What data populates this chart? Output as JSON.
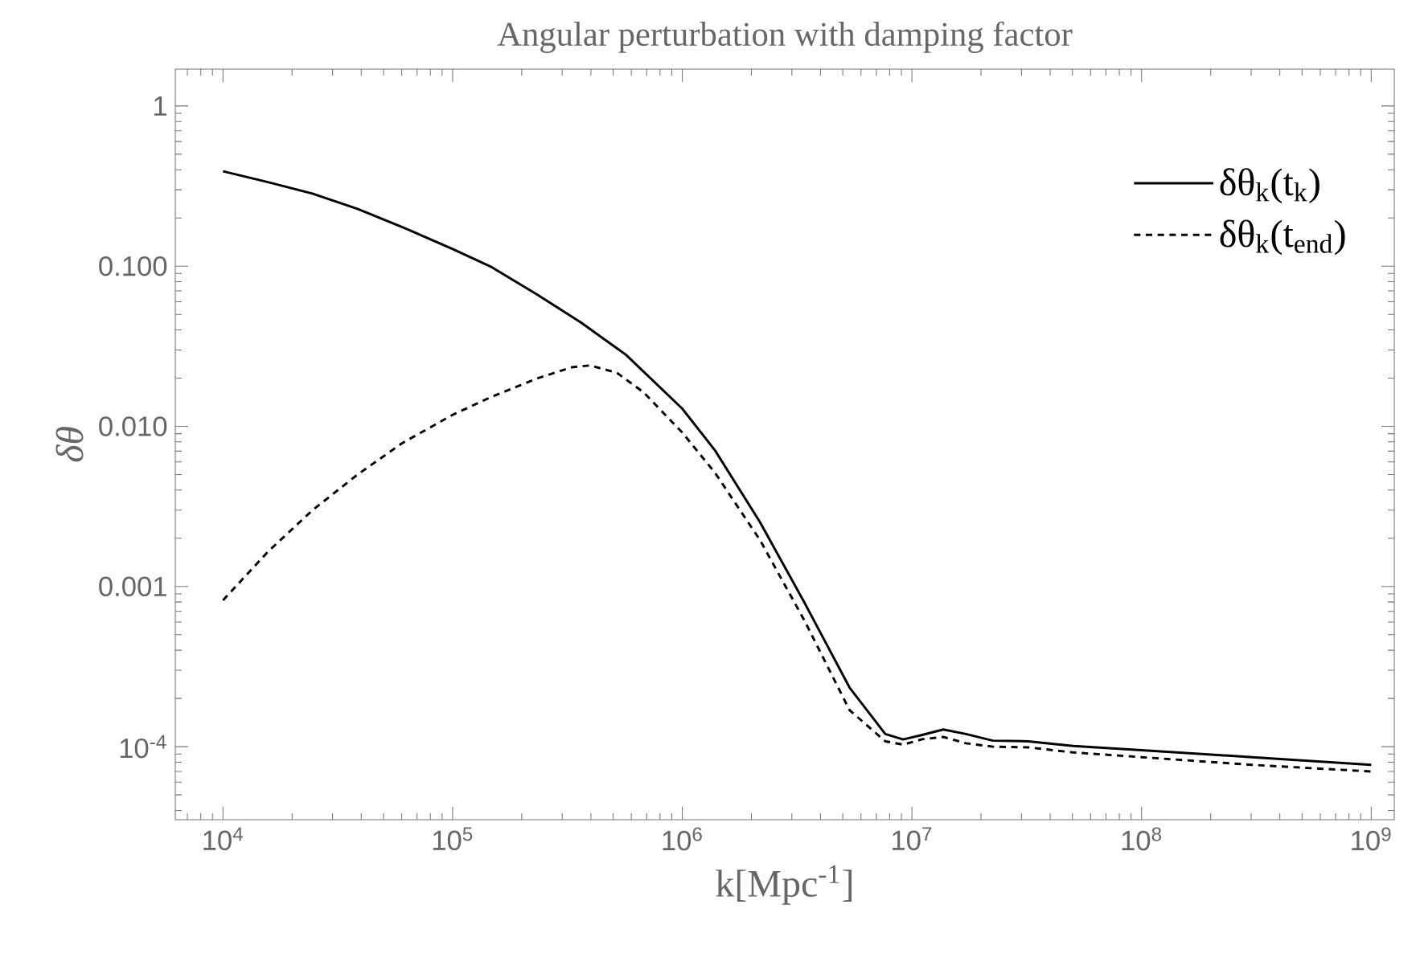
{
  "chart_data": {
    "type": "line",
    "title": "Angular perturbation with damping factor",
    "xlabel": "k[Mpc$^{-1}$]",
    "ylabel": "δθ",
    "log": "xy",
    "grid": false,
    "legend": "top right",
    "marker": "none",
    "xlim": [
      6200,
      1260000000
    ],
    "ylim": [
      3.5e-05,
      1.7
    ],
    "xticks": [
      {
        "value": 10000,
        "label": "10$^{4}$"
      },
      {
        "value": 100000,
        "label": "10$^{5}$"
      },
      {
        "value": 1000000,
        "label": "10$^{6}$"
      },
      {
        "value": 10000000,
        "label": "10$^{7}$"
      },
      {
        "value": 100000000,
        "label": "10$^{8}$"
      },
      {
        "value": 1000000000,
        "label": "10$^{9}$"
      }
    ],
    "yticks": [
      {
        "value": 0.0001,
        "label": "10$^{-4}$"
      },
      0.001,
      {
        "value": 0.01,
        "label": "0.010"
      },
      {
        "value": 0.1,
        "label": "0.100"
      },
      1
    ],
    "series": [
      {
        "name": "δθ$_{k}$(t$_{k}$)",
        "color": "#000000",
        "line_style": "solid",
        "x": [
          10000,
          15700,
          24500,
          38500,
          60100,
          100000,
          148000,
          231000,
          362000,
          568000,
          1000000,
          1390000,
          2180000,
          3410000,
          5350000,
          7660000,
          9160000,
          11000000,
          13700000,
          17200000,
          22500000,
          32100000,
          50400000,
          100000000,
          303000000,
          1000000000
        ],
        "values": [
          0.391,
          0.335,
          0.284,
          0.228,
          0.176,
          0.128,
          0.0986,
          0.0671,
          0.0445,
          0.028,
          0.0129,
          0.00706,
          0.00252,
          0.00079,
          0.000234,
          0.00012,
          0.000111,
          0.000118,
          0.000128,
          0.00012,
          0.000109,
          0.000108,
          0.000101,
          9.5e-05,
          8.6e-05,
          7.7e-05
        ]
      },
      {
        "name": "δθ$_{k}$(t$_{end}$)",
        "color": "#000000",
        "line_style": "dashed",
        "x": [
          10000,
          15700,
          24500,
          38500,
          60100,
          100000,
          148000,
          231000,
          331000,
          396000,
          519000,
          679000,
          1000000,
          1390000,
          2180000,
          3410000,
          5350000,
          7660000,
          9160000,
          11000000,
          13700000,
          17200000,
          22500000,
          32100000,
          50400000,
          100000000,
          303000000,
          1000000000
        ],
        "values": [
          0.00082,
          0.00165,
          0.00299,
          0.00499,
          0.00783,
          0.0118,
          0.0153,
          0.0198,
          0.0234,
          0.024,
          0.0216,
          0.0163,
          0.00914,
          0.00512,
          0.00195,
          0.00061,
          0.000169,
          0.000108,
          0.000103,
          0.000111,
          0.000115,
          0.000105,
          0.0001,
          9.9e-05,
          9.2e-05,
          8.6e-05,
          7.7e-05,
          7e-05
        ]
      }
    ]
  }
}
